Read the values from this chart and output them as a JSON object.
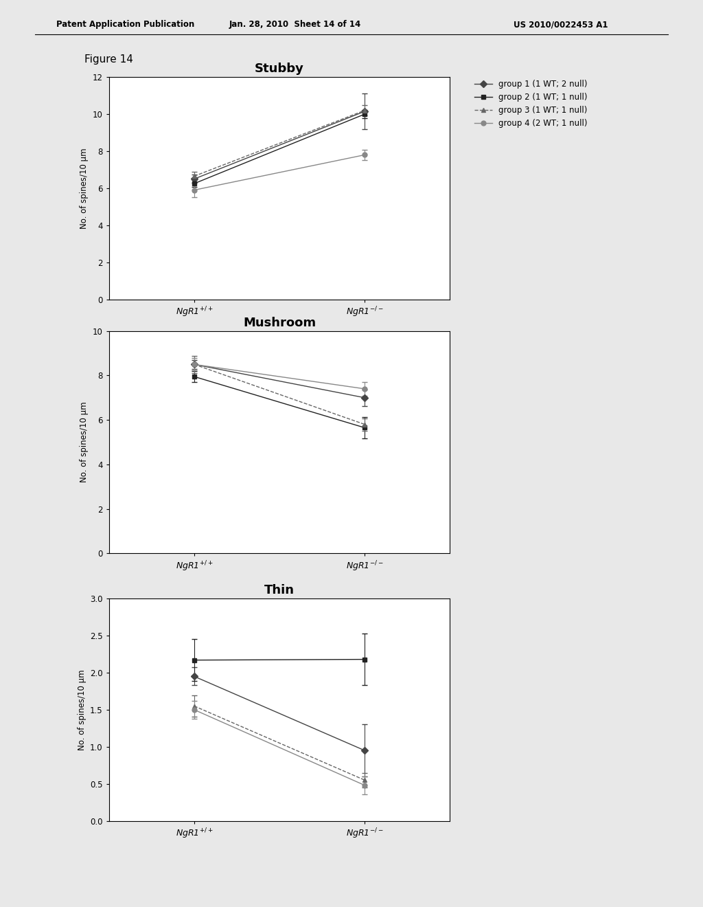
{
  "header_left": "Patent Application Publication",
  "header_center": "Jan. 28, 2010  Sheet 14 of 14",
  "header_right": "US 2010/0022453 A1",
  "figure_label": "Figure 14",
  "plots": [
    {
      "title": "Stubby",
      "ylim": [
        0.0,
        12.0
      ],
      "yticks": [
        0.0,
        2.0,
        4.0,
        6.0,
        8.0,
        10.0,
        12.0
      ],
      "ylabel": "No. of spines/10 μm",
      "groups": [
        {
          "label": "group 1 (1 WT; 2 null)",
          "x": [
            0,
            1
          ],
          "y": [
            6.5,
            10.15
          ],
          "yerr": [
            0.22,
            0.95
          ],
          "marker": "D",
          "color": "#444444",
          "linestyle": "-"
        },
        {
          "label": "group 2 (1 WT; 1 null)",
          "x": [
            0,
            1
          ],
          "y": [
            6.25,
            10.0
          ],
          "yerr": [
            0.18,
            0.22
          ],
          "marker": "s",
          "color": "#222222",
          "linestyle": "-"
        },
        {
          "label": "group 3 (1 WT; 1 null)",
          "x": [
            0,
            1
          ],
          "y": [
            6.65,
            10.2
          ],
          "yerr": [
            0.22,
            0.28
          ],
          "marker": "^",
          "color": "#666666",
          "linestyle": "--"
        },
        {
          "label": "group 4 (2 WT; 1 null)",
          "x": [
            0,
            1
          ],
          "y": [
            5.9,
            7.8
          ],
          "yerr": [
            0.38,
            0.28
          ],
          "marker": "o",
          "color": "#888888",
          "linestyle": "-"
        }
      ]
    },
    {
      "title": "Mushroom",
      "ylim": [
        0.0,
        10.0
      ],
      "yticks": [
        0.0,
        2.0,
        4.0,
        6.0,
        8.0,
        10.0
      ],
      "ylabel": "No. of spines/10 μm",
      "groups": [
        {
          "label": "group 1 (1 WT; 2 null)",
          "x": [
            0,
            1
          ],
          "y": [
            8.5,
            7.0
          ],
          "yerr": [
            0.2,
            0.38
          ],
          "marker": "D",
          "color": "#444444",
          "linestyle": "-"
        },
        {
          "label": "group 2 (1 WT; 1 null)",
          "x": [
            0,
            1
          ],
          "y": [
            7.95,
            5.65
          ],
          "yerr": [
            0.25,
            0.48
          ],
          "marker": "s",
          "color": "#222222",
          "linestyle": "-"
        },
        {
          "label": "group 3 (1 WT; 1 null)",
          "x": [
            0,
            1
          ],
          "y": [
            8.5,
            5.8
          ],
          "yerr": [
            0.38,
            0.28
          ],
          "marker": "^",
          "color": "#666666",
          "linestyle": "--"
        },
        {
          "label": "group 4 (2 WT; 1 null)",
          "x": [
            0,
            1
          ],
          "y": [
            8.5,
            7.4
          ],
          "yerr": [
            0.28,
            0.32
          ],
          "marker": "o",
          "color": "#888888",
          "linestyle": "-"
        }
      ]
    },
    {
      "title": "Thin",
      "ylim": [
        0.0,
        3.0
      ],
      "yticks": [
        0.0,
        0.5,
        1.0,
        1.5,
        2.0,
        2.5,
        3.0
      ],
      "ylabel": "No. of spines/10 μm",
      "groups": [
        {
          "label": "group 1 (1 WT; 2 null)",
          "x": [
            0,
            1
          ],
          "y": [
            1.95,
            0.95
          ],
          "yerr": [
            0.12,
            0.35
          ],
          "marker": "D",
          "color": "#444444",
          "linestyle": "-"
        },
        {
          "label": "group 2 (1 WT; 1 null)",
          "x": [
            0,
            1
          ],
          "y": [
            2.17,
            2.18
          ],
          "yerr": [
            0.28,
            0.35
          ],
          "marker": "s",
          "color": "#222222",
          "linestyle": "-"
        },
        {
          "label": "group 3 (1 WT; 1 null)",
          "x": [
            0,
            1
          ],
          "y": [
            1.55,
            0.55
          ],
          "yerr": [
            0.14,
            0.1
          ],
          "marker": "^",
          "color": "#666666",
          "linestyle": "--"
        },
        {
          "label": "group 4 (2 WT; 1 null)",
          "x": [
            0,
            1
          ],
          "y": [
            1.5,
            0.48
          ],
          "yerr": [
            0.12,
            0.12
          ],
          "marker": "o",
          "color": "#888888",
          "linestyle": "-"
        }
      ]
    }
  ],
  "xtick_labels": [
    "NgR1$^{+/+}$",
    "NgR1$^{-/-}$"
  ],
  "page_bg": "#e8e8e8"
}
